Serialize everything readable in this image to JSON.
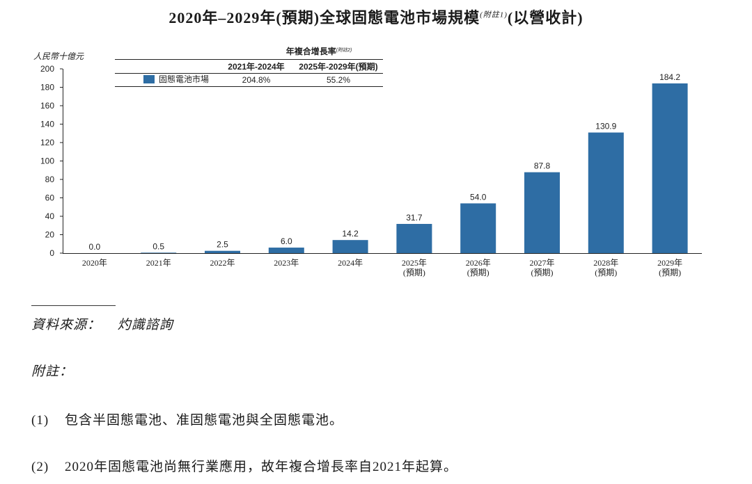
{
  "header": {
    "title": "2020年–2029年(預期)全球固態電池市場規模",
    "title_note": "(附註1)",
    "title_suffix": "(以營收計)"
  },
  "chart_data": {
    "type": "bar",
    "ylabel": "人民幣十億元",
    "ylim": [
      0,
      200
    ],
    "yticks": [
      0,
      20,
      40,
      60,
      80,
      100,
      120,
      140,
      160,
      180,
      200
    ],
    "categories": [
      {
        "line1": "2020年",
        "line2": ""
      },
      {
        "line1": "2021年",
        "line2": ""
      },
      {
        "line1": "2022年",
        "line2": ""
      },
      {
        "line1": "2023年",
        "line2": ""
      },
      {
        "line1": "2024年",
        "line2": ""
      },
      {
        "line1": "2025年",
        "line2": "(預期)"
      },
      {
        "line1": "2026年",
        "line2": "(預期)"
      },
      {
        "line1": "2027年",
        "line2": "(預期)"
      },
      {
        "line1": "2028年",
        "line2": "(預期)"
      },
      {
        "line1": "2029年",
        "line2": "(預期)"
      }
    ],
    "series": [
      {
        "name": "固態電池市場",
        "color": "#2e6da4",
        "values": [
          0.0,
          0.5,
          2.5,
          6.0,
          14.2,
          31.7,
          54.0,
          87.8,
          130.9,
          184.2
        ],
        "labels": [
          "0.0",
          "0.5",
          "2.5",
          "6.0",
          "14.2",
          "31.7",
          "54.0",
          "87.8",
          "130.9",
          "184.2"
        ]
      }
    ],
    "cagr_table": {
      "heading": "年複合增長率",
      "heading_note": "(附註2)",
      "columns": [
        "2021年-2024年",
        "2025年-2029年(預期)"
      ],
      "row_values": [
        "204.8%",
        "55.2%"
      ]
    }
  },
  "footer": {
    "source_label": "資料來源：",
    "source_value": "灼識諮詢",
    "notes_heading": "附註：",
    "notes": [
      {
        "num": "(1)",
        "text": "包含半固態電池、准固態電池與全固態電池。"
      },
      {
        "num": "(2)",
        "text": "2020年固態電池尚無行業應用，故年複合增長率自2021年起算。"
      }
    ]
  }
}
